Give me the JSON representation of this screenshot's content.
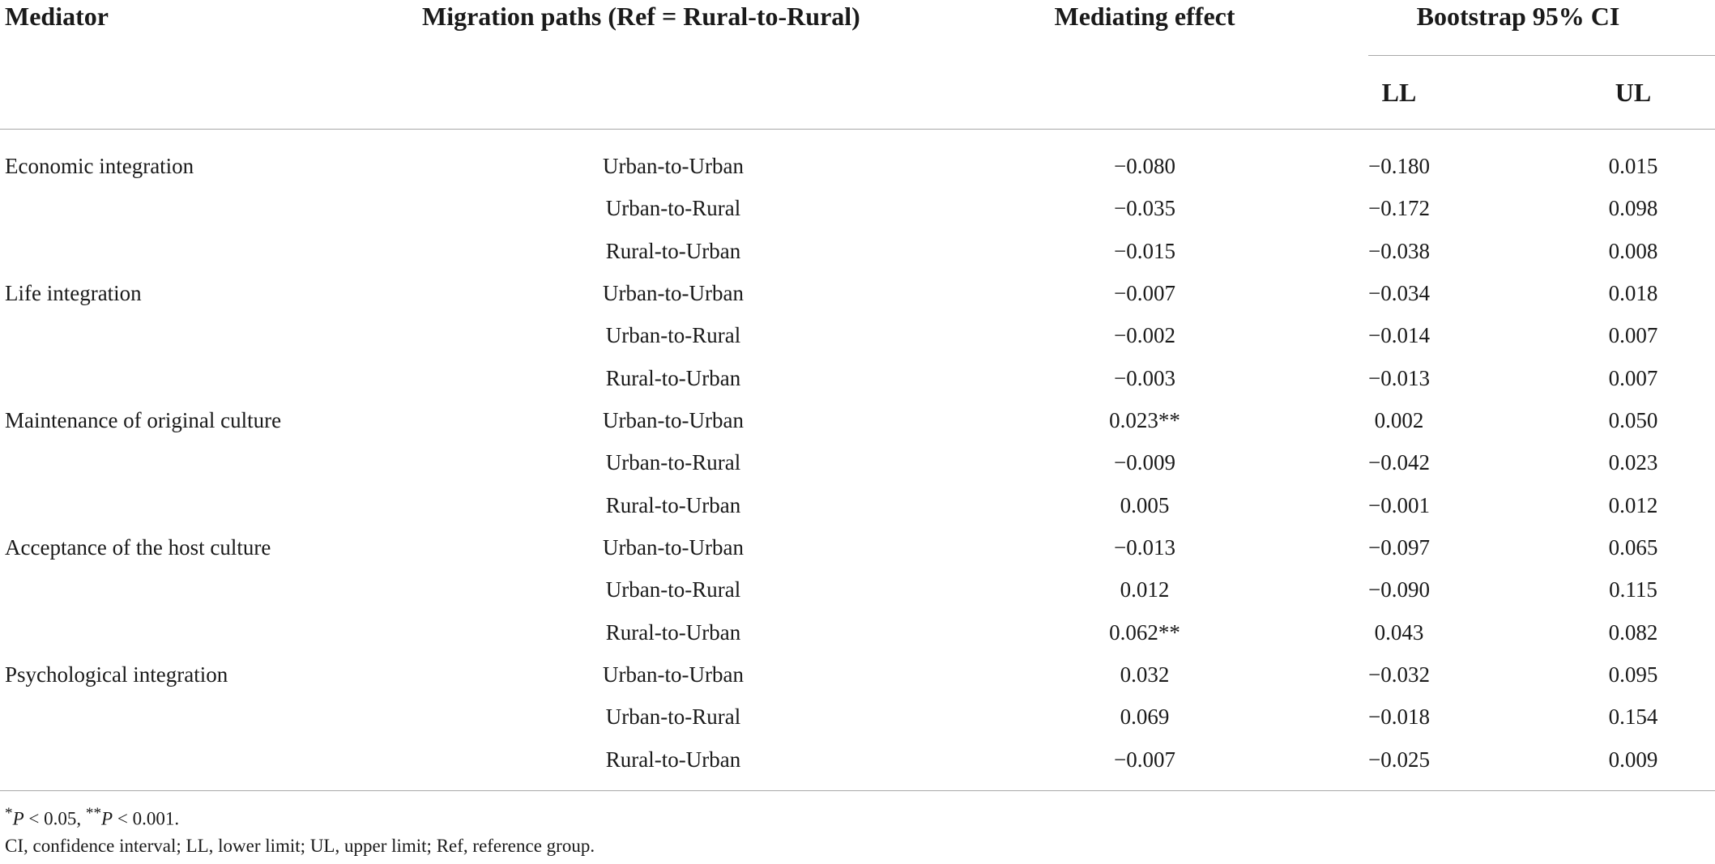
{
  "table": {
    "headers": {
      "mediator": "Mediator",
      "paths": "Migration paths (Ref = Rural-to-Rural)",
      "effect": "Mediating effect",
      "ci": "Bootstrap 95% CI",
      "ll": "LL",
      "ul": "UL"
    },
    "rows": [
      {
        "mediator": "Economic integration",
        "path": "Urban-to-Urban",
        "effect": "−0.080",
        "ll": "−0.180",
        "ul": "0.015"
      },
      {
        "mediator": "",
        "path": "Urban-to-Rural",
        "effect": "−0.035",
        "ll": "−0.172",
        "ul": "0.098"
      },
      {
        "mediator": "",
        "path": "Rural-to-Urban",
        "effect": "−0.015",
        "ll": "−0.038",
        "ul": "0.008"
      },
      {
        "mediator": "Life integration",
        "path": "Urban-to-Urban",
        "effect": "−0.007",
        "ll": "−0.034",
        "ul": "0.018"
      },
      {
        "mediator": "",
        "path": "Urban-to-Rural",
        "effect": "−0.002",
        "ll": "−0.014",
        "ul": "0.007"
      },
      {
        "mediator": "",
        "path": "Rural-to-Urban",
        "effect": "−0.003",
        "ll": "−0.013",
        "ul": "0.007"
      },
      {
        "mediator": "Maintenance of original culture",
        "path": "Urban-to-Urban",
        "effect": "0.023**",
        "ll": "0.002",
        "ul": "0.050"
      },
      {
        "mediator": "",
        "path": "Urban-to-Rural",
        "effect": "−0.009",
        "ll": "−0.042",
        "ul": "0.023"
      },
      {
        "mediator": "",
        "path": "Rural-to-Urban",
        "effect": "0.005",
        "ll": "−0.001",
        "ul": "0.012"
      },
      {
        "mediator": "Acceptance of the host culture",
        "path": "Urban-to-Urban",
        "effect": "−0.013",
        "ll": "−0.097",
        "ul": "0.065"
      },
      {
        "mediator": "",
        "path": "Urban-to-Rural",
        "effect": "0.012",
        "ll": "−0.090",
        "ul": "0.115"
      },
      {
        "mediator": "",
        "path": "Rural-to-Urban",
        "effect": "0.062**",
        "ll": "0.043",
        "ul": "0.082"
      },
      {
        "mediator": "Psychological integration",
        "path": "Urban-to-Urban",
        "effect": "0.032",
        "ll": "−0.032",
        "ul": "0.095"
      },
      {
        "mediator": "",
        "path": "Urban-to-Rural",
        "effect": "0.069",
        "ll": "−0.018",
        "ul": "0.154"
      },
      {
        "mediator": "",
        "path": "Rural-to-Urban",
        "effect": "−0.007",
        "ll": "−0.025",
        "ul": "0.009"
      }
    ]
  },
  "footnotes": {
    "significance": {
      "star1": "*",
      "p1": "P",
      "lt1": " < 0.05, ",
      "star2": "**",
      "p2": "P",
      "lt2": " < 0.001."
    },
    "abbreviations": "CI, confidence interval; LL, lower limit; UL, upper limit; Ref, reference group."
  }
}
